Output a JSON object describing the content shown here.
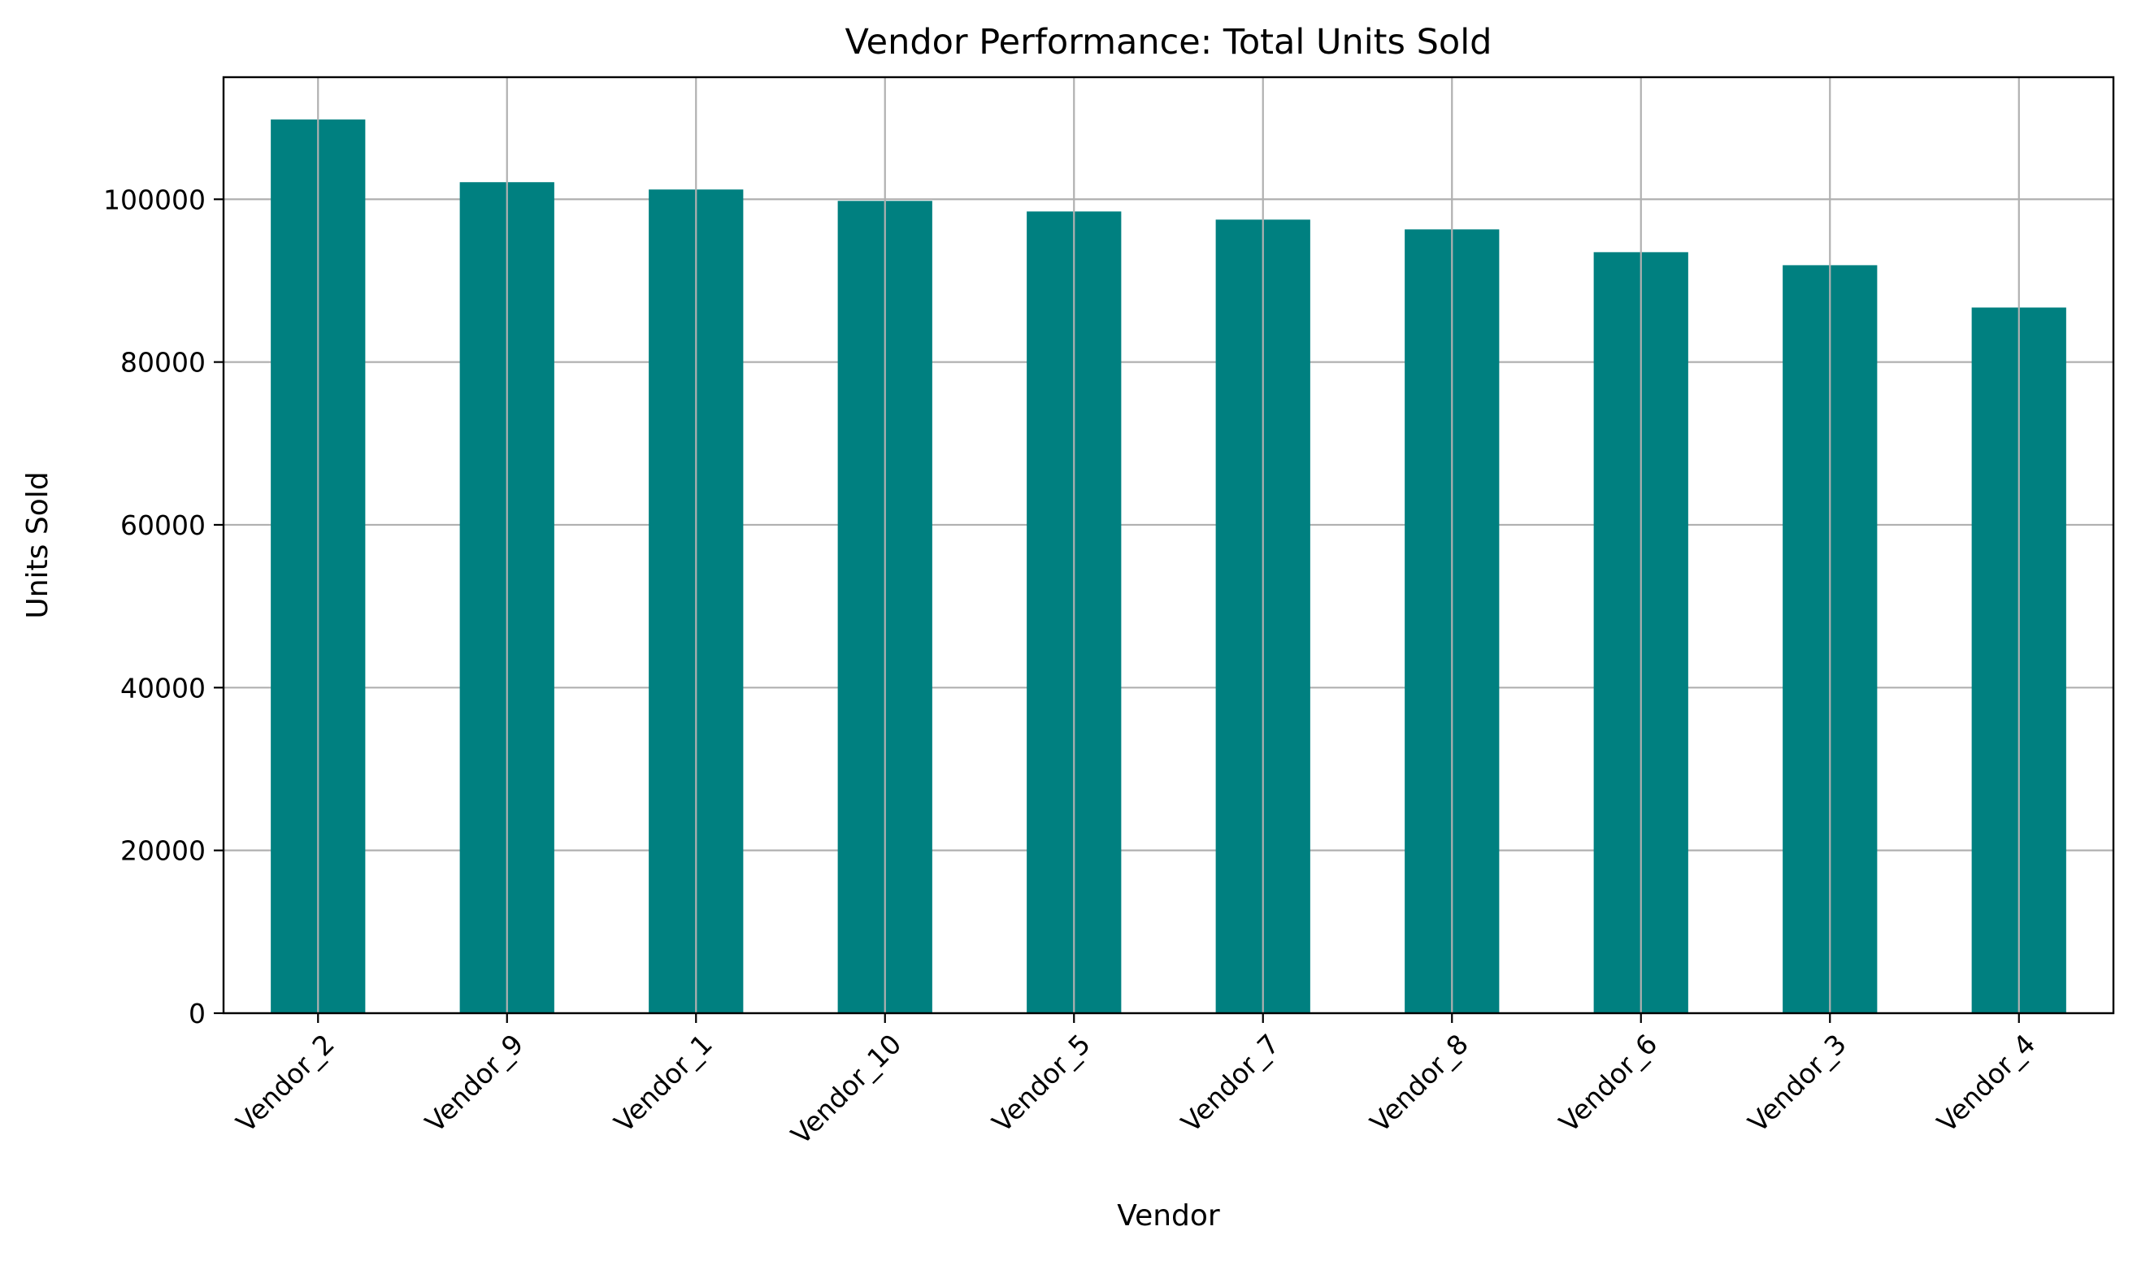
{
  "chart_data": {
    "type": "bar",
    "title": "Vendor Performance: Total Units Sold",
    "xlabel": "Vendor",
    "ylabel": "Units Sold",
    "categories": [
      "Vendor_2",
      "Vendor_9",
      "Vendor_1",
      "Vendor_10",
      "Vendor_5",
      "Vendor_7",
      "Vendor_8",
      "Vendor_6",
      "Vendor_3",
      "Vendor_4"
    ],
    "values": [
      109800,
      102100,
      101200,
      99800,
      98500,
      97500,
      96300,
      93500,
      91900,
      86700
    ],
    "ylim": [
      0,
      115000
    ],
    "yticks": [
      0,
      20000,
      40000,
      60000,
      80000,
      100000
    ],
    "ytick_labels": [
      "0",
      "20000",
      "40000",
      "60000",
      "80000",
      "100000"
    ],
    "grid": true,
    "bar_color": "#008080",
    "xtick_rotation_deg": 45
  }
}
